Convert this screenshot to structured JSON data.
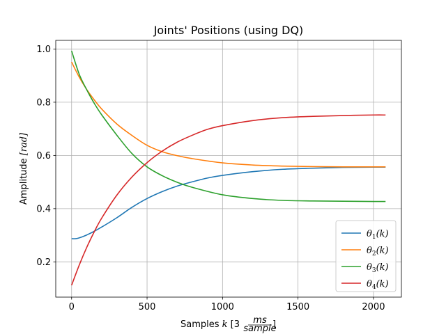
{
  "chart_data": {
    "type": "line",
    "title": "Joints' Positions (using DQ)",
    "xlabel": "Samples k [3 ms/sample]",
    "xlabel_parts": {
      "prefix": "Samples ",
      "var": "k",
      "bracket_open": " [3 ",
      "frac_num": "ms",
      "frac_den": "sample",
      "bracket_close": "]"
    },
    "ylabel": "Amplitude [rad]",
    "ylabel_parts": {
      "prefix": "Amplitude ",
      "unit": "[rad]"
    },
    "xlim": [
      -105,
      2185
    ],
    "ylim": [
      0.0675,
      1.0325
    ],
    "xticks": [
      0,
      500,
      1000,
      1500,
      2000
    ],
    "xtick_labels": [
      "0",
      "500",
      "1000",
      "1500",
      "2000"
    ],
    "yticks": [
      0.2,
      0.4,
      0.6,
      0.8,
      1.0
    ],
    "ytick_labels": [
      "0.2",
      "0.4",
      "0.6",
      "0.8",
      "1.0"
    ],
    "grid": true,
    "legend_position": "lower-right",
    "series": [
      {
        "name": "θ1(k)",
        "symbol": "θ",
        "sub": "1",
        "arg": "(k)",
        "color": "#1f77b4",
        "x": [
          0,
          25,
          50,
          100,
          150,
          200,
          300,
          400,
          500,
          600,
          700,
          800,
          900,
          1000,
          1200,
          1400,
          1600,
          1800,
          2000,
          2080
        ],
        "y": [
          0.287,
          0.287,
          0.29,
          0.301,
          0.315,
          0.331,
          0.366,
          0.405,
          0.438,
          0.464,
          0.485,
          0.501,
          0.515,
          0.525,
          0.539,
          0.548,
          0.552,
          0.555,
          0.556,
          0.556
        ]
      },
      {
        "name": "θ2(k)",
        "symbol": "θ",
        "sub": "2",
        "arg": "(k)",
        "color": "#ff7f0e",
        "x": [
          0,
          50,
          100,
          150,
          200,
          300,
          400,
          500,
          600,
          700,
          800,
          1000,
          1200,
          1400,
          1600,
          1800,
          2000,
          2080
        ],
        "y": [
          0.951,
          0.895,
          0.848,
          0.809,
          0.774,
          0.718,
          0.675,
          0.638,
          0.614,
          0.599,
          0.588,
          0.572,
          0.564,
          0.56,
          0.558,
          0.557,
          0.557,
          0.557
        ]
      },
      {
        "name": "θ3(k)",
        "symbol": "θ",
        "sub": "3",
        "arg": "(k)",
        "color": "#2ca02c",
        "x": [
          0,
          50,
          100,
          150,
          200,
          300,
          400,
          500,
          600,
          700,
          800,
          1000,
          1200,
          1400,
          1600,
          1800,
          2000,
          2080
        ],
        "y": [
          0.993,
          0.906,
          0.847,
          0.796,
          0.752,
          0.676,
          0.607,
          0.557,
          0.524,
          0.499,
          0.48,
          0.452,
          0.438,
          0.431,
          0.429,
          0.428,
          0.427,
          0.427
        ]
      },
      {
        "name": "θ4(k)",
        "symbol": "θ",
        "sub": "4",
        "arg": "(k)",
        "color": "#d62728",
        "x": [
          0,
          50,
          100,
          150,
          200,
          300,
          400,
          500,
          600,
          700,
          800,
          900,
          1000,
          1200,
          1400,
          1600,
          1800,
          2000,
          2080
        ],
        "y": [
          0.112,
          0.187,
          0.254,
          0.313,
          0.365,
          0.451,
          0.519,
          0.573,
          0.616,
          0.65,
          0.676,
          0.698,
          0.712,
          0.731,
          0.742,
          0.747,
          0.75,
          0.752,
          0.752
        ]
      }
    ]
  }
}
